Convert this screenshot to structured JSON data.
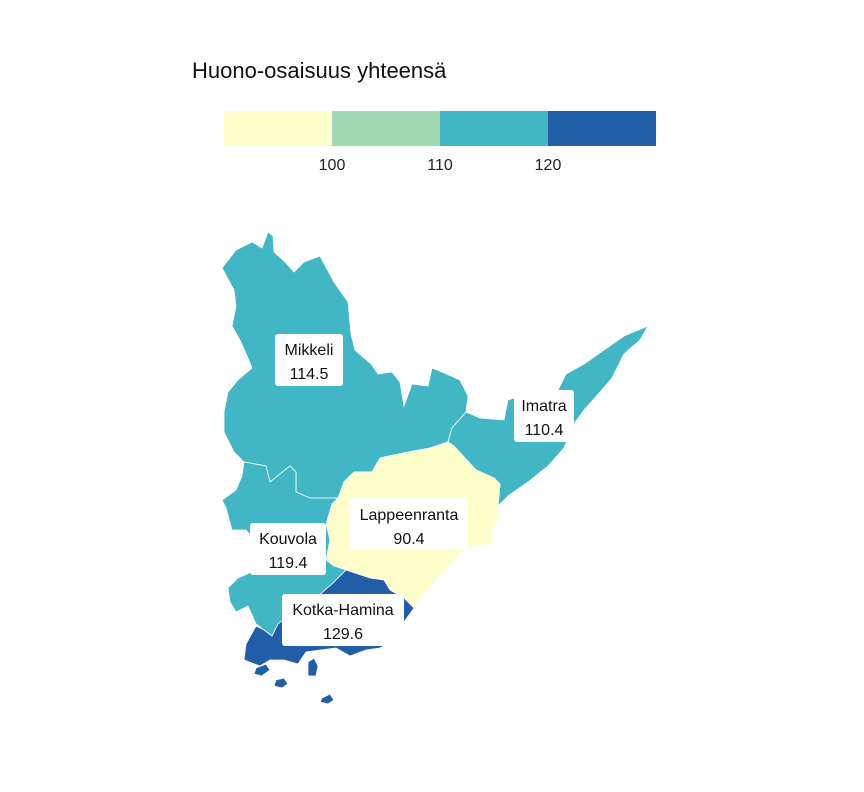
{
  "title": "Huono-osaisuus yhteensä",
  "legend": {
    "colors": [
      "#ffffcc",
      "#a1dab4",
      "#41b6c4",
      "#225ea8"
    ],
    "ticks": [
      "100",
      "110",
      "120"
    ]
  },
  "regions": [
    {
      "id": "mikkeli",
      "name": "Mikkeli",
      "value": "114.5",
      "color": "#41b6c4"
    },
    {
      "id": "imatra",
      "name": "Imatra",
      "value": "110.4",
      "color": "#41b6c4"
    },
    {
      "id": "lappeenranta",
      "name": "Lappeenranta",
      "value": "90.4",
      "color": "#ffffcc"
    },
    {
      "id": "kouvola",
      "name": "Kouvola",
      "value": "119.4",
      "color": "#41b6c4"
    },
    {
      "id": "kotka-hamina",
      "name": "Kotka-Hamina",
      "value": "129.6",
      "color": "#225ea8"
    }
  ]
}
